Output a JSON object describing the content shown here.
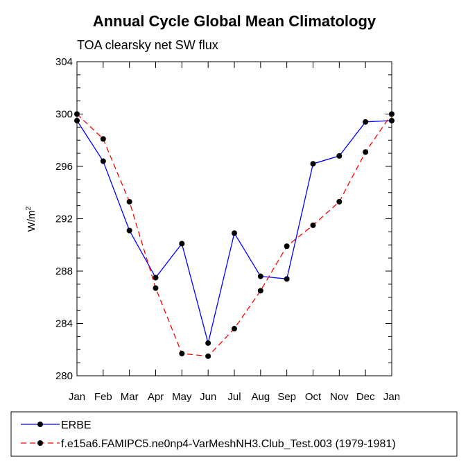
{
  "chart_data": {
    "type": "line",
    "title": "Annual Cycle Global Mean Climatology",
    "subtitle": "TOA clearsky net SW flux",
    "xlabel": "",
    "ylabel_base": "W/m",
    "ylabel_sup": "2",
    "ylim": [
      280,
      304
    ],
    "yticks": [
      "280",
      "284",
      "288",
      "292",
      "296",
      "300",
      "304"
    ],
    "categories": [
      "Jan",
      "Feb",
      "Mar",
      "Apr",
      "May",
      "Jun",
      "Jul",
      "Aug",
      "Sep",
      "Oct",
      "Nov",
      "Dec",
      "Jan"
    ],
    "series": [
      {
        "name": "ERBE",
        "color": "#0000ff",
        "dash": "solid",
        "values": [
          299.5,
          296.4,
          291.1,
          287.5,
          290.1,
          282.5,
          290.9,
          287.6,
          287.4,
          296.2,
          296.8,
          299.4,
          299.5
        ]
      },
      {
        "name": "f.e15a6.FAMIPC5.ne0np4-VarMeshNH3.Club_Test.003 (1979-1981)",
        "color": "#ff0000",
        "dash": "dashed",
        "values": [
          300.0,
          298.1,
          293.3,
          286.7,
          281.7,
          281.5,
          283.6,
          286.5,
          289.9,
          291.5,
          293.3,
          297.1,
          300.0
        ]
      }
    ]
  }
}
